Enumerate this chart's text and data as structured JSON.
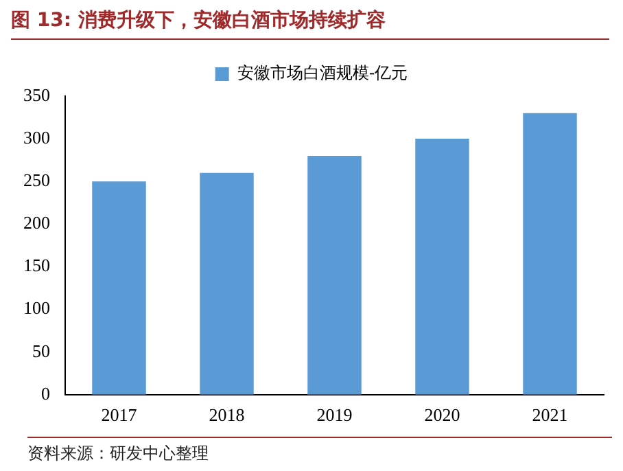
{
  "chart_data": {
    "type": "bar",
    "title": "图 13: 消费升级下，安徽白酒市场持续扩容",
    "categories": [
      "2017",
      "2018",
      "2019",
      "2020",
      "2021"
    ],
    "series": [
      {
        "name": "安徽市场白酒规模-亿元",
        "color": "#5b9bd5",
        "values": [
          250,
          260,
          280,
          300,
          330
        ]
      }
    ],
    "ylim": [
      0,
      350
    ],
    "yticks": [
      0,
      50,
      100,
      150,
      200,
      250,
      300,
      350
    ],
    "grid": false,
    "legend": "top",
    "annotations": [
      "资料来源：研发中心整理"
    ]
  }
}
